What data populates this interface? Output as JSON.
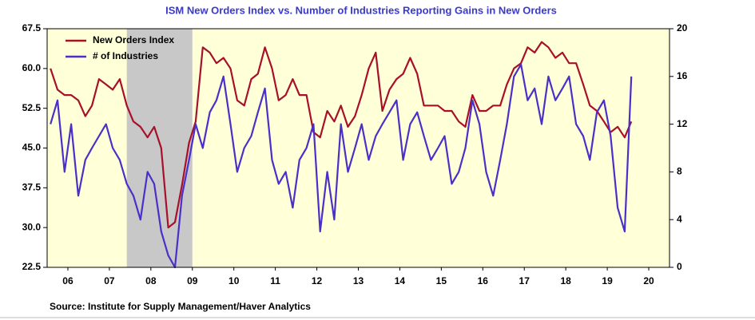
{
  "chart_data": {
    "type": "line",
    "title": "ISM New Orders Index vs. Number of Industries Reporting Gains in New Orders",
    "source": "Source:  Institute for Supply Management/Haver Analytics",
    "x": [
      2006.08,
      2006.25,
      2006.42,
      2006.58,
      2006.75,
      2006.92,
      2007.08,
      2007.25,
      2007.42,
      2007.58,
      2007.75,
      2007.92,
      2008.08,
      2008.25,
      2008.42,
      2008.58,
      2008.75,
      2008.92,
      2009.08,
      2009.25,
      2009.42,
      2009.58,
      2009.75,
      2009.92,
      2010.08,
      2010.25,
      2010.42,
      2010.58,
      2010.75,
      2010.92,
      2011.08,
      2011.25,
      2011.42,
      2011.58,
      2011.75,
      2011.92,
      2012.08,
      2012.25,
      2012.42,
      2012.58,
      2012.75,
      2012.92,
      2013.08,
      2013.25,
      2013.42,
      2013.58,
      2013.75,
      2013.92,
      2014.08,
      2014.25,
      2014.42,
      2014.58,
      2014.75,
      2014.92,
      2015.08,
      2015.25,
      2015.42,
      2015.58,
      2015.75,
      2015.92,
      2016.08,
      2016.25,
      2016.42,
      2016.58,
      2016.75,
      2016.92,
      2017.08,
      2017.25,
      2017.42,
      2017.58,
      2017.75,
      2017.92,
      2018.08,
      2018.25,
      2018.42,
      2018.58,
      2018.75,
      2018.92,
      2019.08,
      2019.25,
      2019.42,
      2019.58,
      2019.75,
      2019.92,
      2020.08
    ],
    "series": [
      {
        "name": "New Orders Index",
        "color": "#a8102a",
        "values": [
          60,
          56,
          55,
          55,
          54,
          51,
          53,
          58,
          57,
          56,
          58,
          53,
          50,
          49,
          47,
          49,
          45,
          30,
          31,
          38,
          46,
          50,
          64,
          63,
          61,
          62,
          60,
          54,
          53,
          58,
          59,
          64,
          60,
          54,
          55,
          58,
          55,
          55,
          48,
          47,
          52,
          50,
          53,
          49,
          51,
          55,
          60,
          63,
          52,
          56,
          58,
          59,
          62,
          59,
          53,
          53,
          53,
          52,
          52,
          50,
          49,
          55,
          52,
          52,
          53,
          53,
          57,
          60,
          61,
          64,
          63,
          65,
          64,
          62,
          63,
          61,
          61,
          57,
          53,
          52,
          50,
          48,
          49,
          47,
          50
        ]
      },
      {
        "name": "# of Industries",
        "color": "#4a30c8",
        "axis": "y2",
        "values": [
          12,
          14,
          8,
          12,
          6,
          9,
          10,
          11,
          12,
          10,
          9,
          7,
          6,
          4,
          8,
          7,
          3,
          1,
          0,
          6,
          9,
          12,
          10,
          13,
          14,
          16,
          12,
          8,
          10,
          11,
          13,
          15,
          9,
          7,
          8,
          5,
          9,
          10,
          12,
          3,
          8,
          4,
          12,
          8,
          10,
          12,
          9,
          11,
          12,
          13,
          14,
          9,
          12,
          13,
          11,
          9,
          10,
          11,
          7,
          8,
          10,
          14,
          12,
          8,
          6,
          9,
          12,
          16,
          17,
          14,
          15,
          12,
          16,
          14,
          15,
          16,
          12,
          11,
          9,
          13,
          14,
          11,
          5,
          3,
          16
        ]
      }
    ],
    "shade": [
      2007.92,
      2009.5
    ],
    "xlim": [
      2006,
      2021
    ],
    "xticks": [
      {
        "value": 2006.5,
        "label": "06"
      },
      {
        "value": 2007.5,
        "label": "07"
      },
      {
        "value": 2008.5,
        "label": "08"
      },
      {
        "value": 2009.5,
        "label": "09"
      },
      {
        "value": 2010.5,
        "label": "10"
      },
      {
        "value": 2011.5,
        "label": "11"
      },
      {
        "value": 2012.5,
        "label": "12"
      },
      {
        "value": 2013.5,
        "label": "13"
      },
      {
        "value": 2014.5,
        "label": "14"
      },
      {
        "value": 2015.5,
        "label": "15"
      },
      {
        "value": 2016.5,
        "label": "16"
      },
      {
        "value": 2017.5,
        "label": "17"
      },
      {
        "value": 2018.5,
        "label": "18"
      },
      {
        "value": 2019.5,
        "label": "19"
      },
      {
        "value": 2020.5,
        "label": "20"
      }
    ],
    "ylim": [
      22.5,
      67.5
    ],
    "yticks": [
      22.5,
      {
        "value": 30,
        "label": "30.0"
      },
      37.5,
      {
        "value": 45,
        "label": "45.0"
      },
      52.5,
      {
        "value": 60,
        "label": "60.0"
      },
      67.5
    ],
    "y2lim": [
      0,
      20
    ],
    "y2ticks": [
      0,
      4,
      8,
      12,
      16,
      20
    ],
    "legend": "upper left"
  }
}
